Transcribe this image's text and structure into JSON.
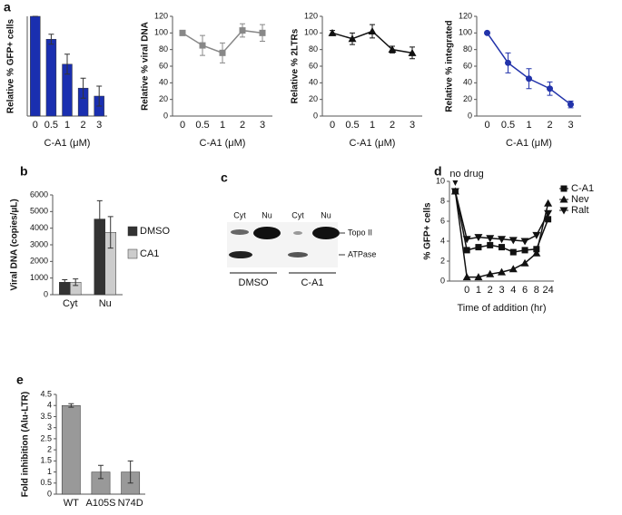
{
  "panel_labels": [
    "a",
    "b",
    "c",
    "d",
    "e"
  ],
  "blot": {
    "lanes": [
      "Cyt",
      "Nu",
      "Cyt",
      "Nu"
    ],
    "bands": [
      "Topo II",
      "ATPase"
    ],
    "groups": [
      "DMSO",
      "C-A1"
    ]
  },
  "chart_data": [
    {
      "type": "bar",
      "ylabel": "Relative % GFP+ cells",
      "xlabel": "C-A1 (μM)",
      "categories": [
        "0",
        "0.5",
        "1",
        "2",
        "3"
      ],
      "values": [
        100,
        77,
        52,
        28,
        20
      ],
      "errors": [
        0,
        5,
        10,
        10,
        10
      ],
      "color": "#1a2fb0",
      "ylim": [
        0,
        100
      ]
    },
    {
      "type": "line",
      "ylabel": "Relative % viral DNA",
      "xlabel": "C-A1 (μM)",
      "categories": [
        "0",
        "0.5",
        "1",
        "2",
        "3"
      ],
      "values": [
        100,
        85,
        76,
        103,
        100
      ],
      "errors": [
        3,
        12,
        12,
        8,
        10
      ],
      "color": "#888888",
      "marker": "square",
      "ylim": [
        0,
        120
      ],
      "yticks": [
        0,
        20,
        40,
        60,
        80,
        100,
        120
      ]
    },
    {
      "type": "line",
      "ylabel": "Relative % 2LTRs",
      "xlabel": "C-A1 (μM)",
      "categories": [
        "0",
        "0.5",
        "1",
        "2",
        "3"
      ],
      "values": [
        100,
        93,
        102,
        80,
        76
      ],
      "errors": [
        3,
        7,
        8,
        4,
        7
      ],
      "color": "#111111",
      "marker": "triangle",
      "ylim": [
        0,
        120
      ],
      "yticks": [
        0,
        20,
        40,
        60,
        80,
        100,
        120
      ]
    },
    {
      "type": "line",
      "ylabel": "Relative % integrated",
      "xlabel": "C-A1 (μM)",
      "categories": [
        "0",
        "0.5",
        "1",
        "2",
        "3"
      ],
      "values": [
        100,
        64,
        45,
        33,
        14
      ],
      "errors": [
        0,
        12,
        12,
        8,
        4
      ],
      "color": "#2233aa",
      "marker": "circle",
      "ylim": [
        0,
        120
      ],
      "yticks": [
        0,
        20,
        40,
        60,
        80,
        100,
        120
      ]
    },
    {
      "type": "bar",
      "ylabel": "Viral DNA (copies/µL)",
      "categories": [
        "Cyt",
        "Nu"
      ],
      "series": [
        {
          "name": "DMSO",
          "color": "#333333",
          "values": [
            750,
            4550
          ],
          "errors": [
            150,
            1100
          ]
        },
        {
          "name": "CA1",
          "color": "#cccccc",
          "values": [
            750,
            3750
          ],
          "errors": [
            200,
            950
          ]
        }
      ],
      "ylim": [
        0,
        6000
      ],
      "yticks": [
        0,
        1000,
        2000,
        3000,
        4000,
        5000,
        6000
      ],
      "legend": "right"
    },
    {
      "type": "line",
      "ylabel": "% GFP+ cells",
      "xlabel": "Time of addition (hr)",
      "annotation": "no drug",
      "categories": [
        null,
        "0",
        "1",
        "2",
        "3",
        "4",
        "6",
        "8",
        "24"
      ],
      "series": [
        {
          "name": "C-A1",
          "color": "#111111",
          "marker": "square",
          "values": [
            9,
            3.1,
            3.4,
            3.6,
            3.4,
            2.9,
            3.1,
            3.2,
            6.2
          ]
        },
        {
          "name": "Nev",
          "color": "#111111",
          "marker": "triangle",
          "values": [
            9,
            0.4,
            0.4,
            0.7,
            0.9,
            1.2,
            1.8,
            2.8,
            7.8
          ]
        },
        {
          "name": "Ralt",
          "color": "#111111",
          "marker": "triangle-down",
          "values": [
            9,
            4.2,
            4.4,
            4.3,
            4.2,
            4.1,
            4.0,
            4.6,
            6.8
          ]
        }
      ],
      "ylim": [
        0,
        10
      ],
      "yticks": [
        0,
        2,
        4,
        6,
        8,
        10
      ],
      "legend": "right"
    },
    {
      "type": "bar",
      "ylabel": "Fold inhibition (Alu-LTR)",
      "categories": [
        "WT",
        "A105S",
        "N74D"
      ],
      "values": [
        4,
        1,
        1
      ],
      "errors": [
        0.08,
        0.3,
        0.5
      ],
      "color": "#999999",
      "ylim": [
        0,
        4.5
      ],
      "yticks": [
        0,
        0.5,
        1,
        1.5,
        2,
        2.5,
        3,
        3.5,
        4,
        4.5
      ]
    }
  ]
}
